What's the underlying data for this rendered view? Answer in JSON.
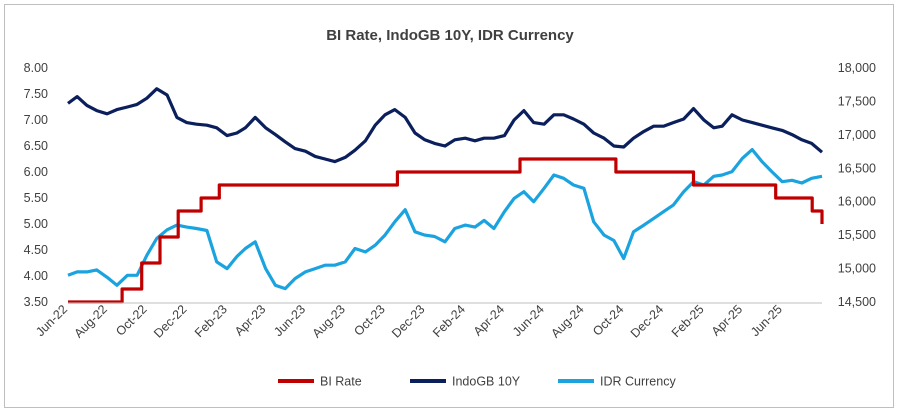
{
  "chart_data": {
    "type": "line",
    "title": "BI Rate, IndoGB 10Y, IDR Currency",
    "legend_position": "bottom",
    "grid": false,
    "x_tick_labels": [
      "Jun-22",
      "Aug-22",
      "Oct-22",
      "Dec-22",
      "Feb-23",
      "Apr-23",
      "Jun-23",
      "Aug-23",
      "Oct-23",
      "Dec-23",
      "Feb-24",
      "Apr-24",
      "Jun-24",
      "Aug-24",
      "Oct-24",
      "Dec-24",
      "Feb-25",
      "Apr-25",
      "Jun-25"
    ],
    "x_range": [
      "2022-06-01",
      "2025-07-31"
    ],
    "y_left": {
      "range": [
        3.5,
        8.0
      ],
      "ticks": [
        "3.50",
        "4.00",
        "4.50",
        "5.00",
        "5.50",
        "6.00",
        "6.50",
        "7.00",
        "7.50",
        "8.00"
      ]
    },
    "y_right": {
      "range": [
        14500,
        18000
      ],
      "ticks": [
        "14,500",
        "15,000",
        "15,500",
        "16,000",
        "16,500",
        "17,000",
        "17,500",
        "18,000"
      ]
    },
    "series": [
      {
        "name": "BI Rate",
        "axis": "left",
        "color": "#c00000",
        "step": true,
        "points": [
          [
            "2022-06-01",
            3.5
          ],
          [
            "2022-08-23",
            3.75
          ],
          [
            "2022-09-22",
            4.25
          ],
          [
            "2022-10-20",
            4.75
          ],
          [
            "2022-11-17",
            5.25
          ],
          [
            "2022-12-22",
            5.5
          ],
          [
            "2023-01-19",
            5.75
          ],
          [
            "2023-10-19",
            6.0
          ],
          [
            "2024-04-24",
            6.25
          ],
          [
            "2024-09-18",
            6.0
          ],
          [
            "2025-01-15",
            5.75
          ],
          [
            "2025-05-21",
            5.5
          ],
          [
            "2025-07-16",
            5.25
          ],
          [
            "2025-07-31",
            5.0
          ]
        ]
      },
      {
        "name": "IndoGB 10Y",
        "axis": "left",
        "color": "#0a1f5c",
        "points": [
          [
            "2022-06-01",
            7.32
          ],
          [
            "2022-06-15",
            7.45
          ],
          [
            "2022-06-30",
            7.28
          ],
          [
            "2022-07-15",
            7.18
          ],
          [
            "2022-07-31",
            7.12
          ],
          [
            "2022-08-15",
            7.2
          ],
          [
            "2022-08-31",
            7.25
          ],
          [
            "2022-09-15",
            7.3
          ],
          [
            "2022-09-30",
            7.42
          ],
          [
            "2022-10-15",
            7.6
          ],
          [
            "2022-10-31",
            7.48
          ],
          [
            "2022-11-15",
            7.05
          ],
          [
            "2022-11-30",
            6.95
          ],
          [
            "2022-12-15",
            6.92
          ],
          [
            "2022-12-31",
            6.9
          ],
          [
            "2023-01-15",
            6.85
          ],
          [
            "2023-01-31",
            6.7
          ],
          [
            "2023-02-15",
            6.75
          ],
          [
            "2023-02-28",
            6.85
          ],
          [
            "2023-03-15",
            7.05
          ],
          [
            "2023-03-31",
            6.85
          ],
          [
            "2023-04-15",
            6.72
          ],
          [
            "2023-04-30",
            6.58
          ],
          [
            "2023-05-15",
            6.45
          ],
          [
            "2023-05-31",
            6.4
          ],
          [
            "2023-06-15",
            6.3
          ],
          [
            "2023-06-30",
            6.25
          ],
          [
            "2023-07-15",
            6.2
          ],
          [
            "2023-07-31",
            6.28
          ],
          [
            "2023-08-15",
            6.42
          ],
          [
            "2023-08-31",
            6.6
          ],
          [
            "2023-09-15",
            6.9
          ],
          [
            "2023-09-30",
            7.1
          ],
          [
            "2023-10-15",
            7.2
          ],
          [
            "2023-10-31",
            7.05
          ],
          [
            "2023-11-15",
            6.75
          ],
          [
            "2023-11-30",
            6.62
          ],
          [
            "2023-12-15",
            6.55
          ],
          [
            "2023-12-31",
            6.5
          ],
          [
            "2024-01-15",
            6.62
          ],
          [
            "2024-01-31",
            6.65
          ],
          [
            "2024-02-15",
            6.6
          ],
          [
            "2024-02-29",
            6.65
          ],
          [
            "2024-03-15",
            6.65
          ],
          [
            "2024-03-31",
            6.7
          ],
          [
            "2024-04-15",
            7.0
          ],
          [
            "2024-04-30",
            7.18
          ],
          [
            "2024-05-15",
            6.95
          ],
          [
            "2024-05-31",
            6.92
          ],
          [
            "2024-06-15",
            7.1
          ],
          [
            "2024-06-30",
            7.1
          ],
          [
            "2024-07-15",
            7.02
          ],
          [
            "2024-07-31",
            6.92
          ],
          [
            "2024-08-15",
            6.75
          ],
          [
            "2024-08-31",
            6.65
          ],
          [
            "2024-09-15",
            6.5
          ],
          [
            "2024-09-30",
            6.48
          ],
          [
            "2024-10-15",
            6.65
          ],
          [
            "2024-10-31",
            6.78
          ],
          [
            "2024-11-15",
            6.88
          ],
          [
            "2024-11-30",
            6.88
          ],
          [
            "2024-12-15",
            6.95
          ],
          [
            "2024-12-31",
            7.02
          ],
          [
            "2025-01-15",
            7.22
          ],
          [
            "2025-01-31",
            7.0
          ],
          [
            "2025-02-15",
            6.85
          ],
          [
            "2025-02-28",
            6.88
          ],
          [
            "2025-03-15",
            7.1
          ],
          [
            "2025-03-31",
            7.0
          ],
          [
            "2025-04-15",
            6.95
          ],
          [
            "2025-04-30",
            6.9
          ],
          [
            "2025-05-15",
            6.85
          ],
          [
            "2025-05-31",
            6.8
          ],
          [
            "2025-06-15",
            6.72
          ],
          [
            "2025-06-30",
            6.62
          ],
          [
            "2025-07-15",
            6.55
          ],
          [
            "2025-07-31",
            6.38
          ]
        ]
      },
      {
        "name": "IDR Currency",
        "axis": "right",
        "color": "#1ba3e0",
        "points": [
          [
            "2022-06-01",
            14900
          ],
          [
            "2022-06-15",
            14950
          ],
          [
            "2022-06-30",
            14950
          ],
          [
            "2022-07-15",
            14980
          ],
          [
            "2022-07-31",
            14870
          ],
          [
            "2022-08-15",
            14750
          ],
          [
            "2022-08-31",
            14900
          ],
          [
            "2022-09-15",
            14900
          ],
          [
            "2022-09-30",
            15200
          ],
          [
            "2022-10-15",
            15450
          ],
          [
            "2022-10-31",
            15580
          ],
          [
            "2022-11-15",
            15650
          ],
          [
            "2022-11-30",
            15620
          ],
          [
            "2022-12-15",
            15600
          ],
          [
            "2022-12-31",
            15570
          ],
          [
            "2023-01-15",
            15100
          ],
          [
            "2023-01-31",
            15000
          ],
          [
            "2023-02-15",
            15180
          ],
          [
            "2023-02-28",
            15300
          ],
          [
            "2023-03-15",
            15400
          ],
          [
            "2023-03-31",
            15000
          ],
          [
            "2023-04-15",
            14750
          ],
          [
            "2023-04-30",
            14700
          ],
          [
            "2023-05-15",
            14850
          ],
          [
            "2023-05-31",
            14950
          ],
          [
            "2023-06-15",
            15000
          ],
          [
            "2023-06-30",
            15050
          ],
          [
            "2023-07-15",
            15050
          ],
          [
            "2023-07-31",
            15100
          ],
          [
            "2023-08-15",
            15300
          ],
          [
            "2023-08-31",
            15250
          ],
          [
            "2023-09-15",
            15350
          ],
          [
            "2023-09-30",
            15500
          ],
          [
            "2023-10-15",
            15700
          ],
          [
            "2023-10-31",
            15880
          ],
          [
            "2023-11-15",
            15550
          ],
          [
            "2023-11-30",
            15500
          ],
          [
            "2023-12-15",
            15480
          ],
          [
            "2023-12-31",
            15400
          ],
          [
            "2024-01-15",
            15600
          ],
          [
            "2024-01-31",
            15650
          ],
          [
            "2024-02-15",
            15620
          ],
          [
            "2024-02-29",
            15720
          ],
          [
            "2024-03-15",
            15600
          ],
          [
            "2024-03-31",
            15850
          ],
          [
            "2024-04-15",
            16050
          ],
          [
            "2024-04-30",
            16150
          ],
          [
            "2024-05-15",
            16000
          ],
          [
            "2024-05-31",
            16200
          ],
          [
            "2024-06-15",
            16400
          ],
          [
            "2024-06-30",
            16350
          ],
          [
            "2024-07-15",
            16250
          ],
          [
            "2024-07-31",
            16200
          ],
          [
            "2024-08-15",
            15700
          ],
          [
            "2024-08-31",
            15500
          ],
          [
            "2024-09-15",
            15420
          ],
          [
            "2024-09-30",
            15150
          ],
          [
            "2024-10-15",
            15550
          ],
          [
            "2024-10-31",
            15650
          ],
          [
            "2024-11-15",
            15750
          ],
          [
            "2024-11-30",
            15850
          ],
          [
            "2024-12-15",
            15950
          ],
          [
            "2024-12-31",
            16150
          ],
          [
            "2025-01-15",
            16300
          ],
          [
            "2025-01-31",
            16250
          ],
          [
            "2025-02-15",
            16380
          ],
          [
            "2025-02-28",
            16400
          ],
          [
            "2025-03-15",
            16450
          ],
          [
            "2025-03-31",
            16650
          ],
          [
            "2025-04-15",
            16780
          ],
          [
            "2025-04-30",
            16600
          ],
          [
            "2025-05-15",
            16450
          ],
          [
            "2025-05-31",
            16300
          ],
          [
            "2025-06-15",
            16320
          ],
          [
            "2025-06-30",
            16280
          ],
          [
            "2025-07-15",
            16350
          ],
          [
            "2025-07-31",
            16380
          ]
        ]
      }
    ]
  }
}
